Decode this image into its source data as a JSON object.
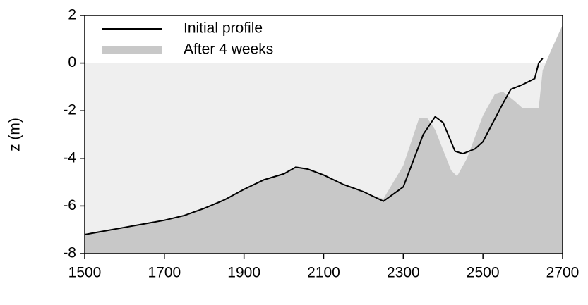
{
  "chart_data": {
    "type": "line",
    "ylabel": "z (m)",
    "xlim": [
      1500,
      2700
    ],
    "xticks": [
      1500,
      1700,
      1900,
      2100,
      2300,
      2500,
      2700
    ],
    "ylim": [
      -8,
      2
    ],
    "yticks": [
      -8,
      -6,
      -4,
      -2,
      0,
      2
    ],
    "legend": "upper left",
    "series": [
      {
        "name": "Initial profile",
        "color": "#000000",
        "style": "line",
        "x": [
          1500,
          1550,
          1600,
          1650,
          1700,
          1750,
          1800,
          1850,
          1900,
          1950,
          2000,
          2030,
          2060,
          2100,
          2150,
          2200,
          2250,
          2300,
          2350,
          2380,
          2400,
          2430,
          2450,
          2480,
          2500,
          2550,
          2570,
          2600,
          2630,
          2640,
          2650
        ],
        "values": [
          -7.2,
          -7.05,
          -6.9,
          -6.75,
          -6.6,
          -6.4,
          -6.1,
          -5.75,
          -5.3,
          -4.9,
          -4.65,
          -4.37,
          -4.45,
          -4.7,
          -5.1,
          -5.4,
          -5.8,
          -5.2,
          -3.0,
          -2.25,
          -2.5,
          -3.7,
          -3.8,
          -3.6,
          -3.3,
          -1.7,
          -1.1,
          -0.9,
          -0.65,
          0.0,
          0.2
        ]
      },
      {
        "name": "After 4 weeks",
        "color": "#c8c8c8",
        "style": "area",
        "x": [
          1500,
          1550,
          1600,
          1650,
          1700,
          1750,
          1800,
          1850,
          1900,
          1950,
          2000,
          2030,
          2060,
          2100,
          2150,
          2200,
          2230,
          2250,
          2300,
          2340,
          2360,
          2380,
          2420,
          2435,
          2460,
          2500,
          2530,
          2550,
          2580,
          2600,
          2640,
          2650,
          2670,
          2700
        ],
        "values": [
          -7.2,
          -7.05,
          -6.9,
          -6.75,
          -6.6,
          -6.4,
          -6.1,
          -5.75,
          -5.3,
          -4.9,
          -4.65,
          -4.37,
          -4.45,
          -4.7,
          -5.1,
          -5.4,
          -5.6,
          -5.7,
          -4.3,
          -2.3,
          -2.3,
          -2.8,
          -4.5,
          -4.75,
          -4.0,
          -2.2,
          -1.3,
          -1.2,
          -1.6,
          -1.9,
          -1.9,
          -0.3,
          0.5,
          1.6
        ]
      }
    ]
  }
}
